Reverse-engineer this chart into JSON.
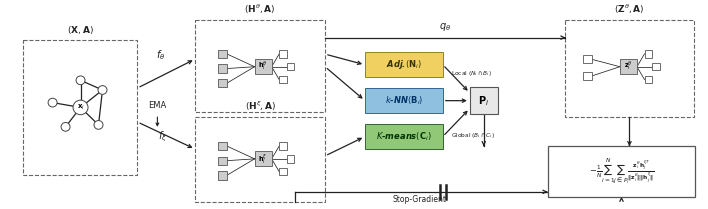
{
  "bg_color": "#ffffff",
  "fig_width": 7.08,
  "fig_height": 2.09,
  "dpi": 100,
  "adj_color": "#f0d060",
  "knn_color": "#90c0e0",
  "kmeans_color": "#90c878",
  "text_color": "#222222",
  "line_color": "#222222",
  "box_edge_color": "#666666",
  "node_color": "#ffffff",
  "node_edge": "#444444",
  "enc_box_color": "#cccccc"
}
